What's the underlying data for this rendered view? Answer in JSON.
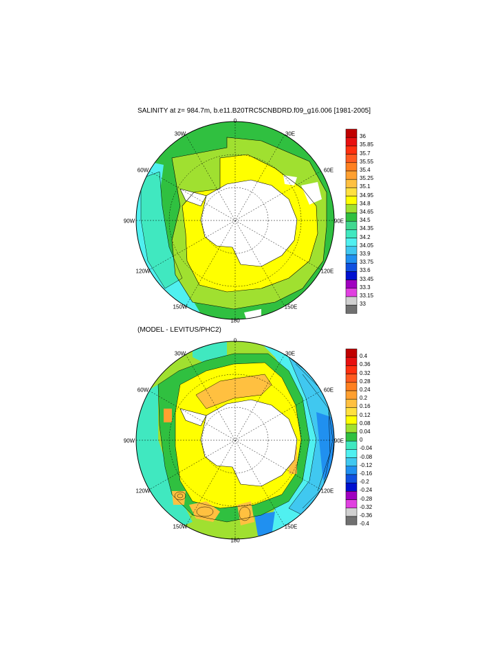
{
  "panel1": {
    "title": "SALINITY at z= 984.7m, b.e11.B20TRC5CNBDRD.f09_g16.006 [1981-2005]",
    "colorbar": {
      "labels": [
        "36",
        "35.85",
        "35.7",
        "35.55",
        "35.4",
        "35.25",
        "35.1",
        "34.95",
        "34.8",
        "34.65",
        "34.5",
        "34.35",
        "34.2",
        "34.05",
        "33.9",
        "33.75",
        "33.6",
        "33.45",
        "33.3",
        "33.15",
        "33"
      ],
      "colors": [
        "#c00000",
        "#e81010",
        "#ff3010",
        "#ff5a20",
        "#ff8020",
        "#ffa030",
        "#ffc040",
        "#ffe040",
        "#ffff00",
        "#a0e030",
        "#30c040",
        "#40d890",
        "#40e8c0",
        "#50f0f0",
        "#40c8f0",
        "#2090f0",
        "#1050e0",
        "#0010d0",
        "#a000c0",
        "#e040e0",
        "#d0d0d0",
        "#707070"
      ]
    },
    "lon_labels": {
      "n": "0",
      "ne": "30E",
      "e1": "60E",
      "e": "90E",
      "se1": "120E",
      "se": "150E",
      "s": "180",
      "sw": "150W",
      "w1": "120W",
      "w": "90W",
      "nw1": "60W",
      "nw": "30W"
    }
  },
  "panel2": {
    "title": "(MODEL - LEVITUS/PHC2)",
    "colorbar": {
      "labels": [
        "0.4",
        "0.36",
        "0.32",
        "0.28",
        "0.24",
        "0.2",
        "0.16",
        "0.12",
        "0.08",
        "0.04",
        "0",
        "-0.04",
        "-0.08",
        "-0.12",
        "-0.16",
        "-0.2",
        "-0.24",
        "-0.28",
        "-0.32",
        "-0.36",
        "-0.4"
      ],
      "colors": [
        "#c00000",
        "#e81010",
        "#ff3010",
        "#ff5a20",
        "#ff8020",
        "#ffa030",
        "#ffc040",
        "#ffe040",
        "#ffff00",
        "#a0e030",
        "#30c040",
        "#40e8c0",
        "#50f0f0",
        "#40c8f0",
        "#2090f0",
        "#1050e0",
        "#0010d0",
        "#a000c0",
        "#e040e0",
        "#d0d0d0",
        "#707070"
      ]
    },
    "lon_labels": {
      "n": "0",
      "ne": "30E",
      "e1": "60E",
      "e": "90E",
      "se1": "120E",
      "se": "150E",
      "s": "180",
      "sw": "150W",
      "w1": "120W",
      "w": "90W",
      "nw1": "60W",
      "nw": "30W"
    }
  }
}
